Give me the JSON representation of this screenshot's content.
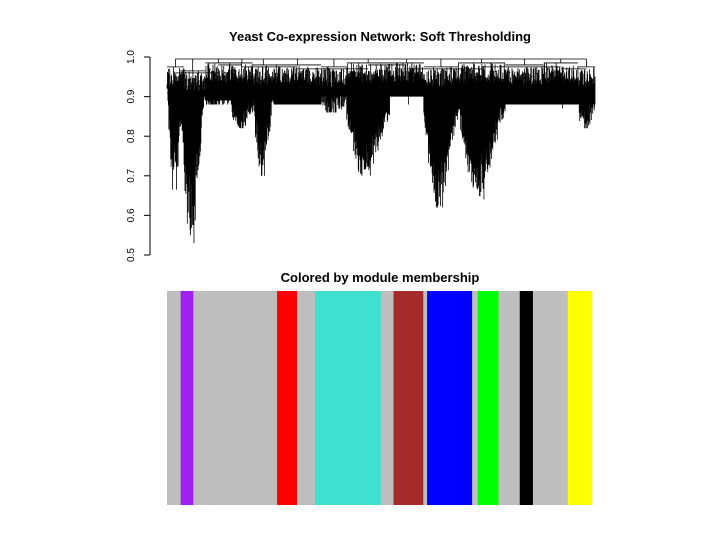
{
  "chart_data": [
    {
      "type": "dendrogram",
      "title": "Yeast Co-expression Network: Soft Thresholding",
      "xlabel": "",
      "ylabel": "",
      "ylim": [
        0.5,
        1.0
      ],
      "yticks": [
        "0.5",
        "0.6",
        "0.7",
        "0.8",
        "0.9",
        "1.0"
      ],
      "grid": false,
      "legend": "none",
      "line_color": "#000000",
      "clusters": [
        {
          "start": 0.0,
          "end": 0.04,
          "top": 0.975,
          "floor": 0.92,
          "min": 0.665
        },
        {
          "start": 0.03,
          "end": 0.09,
          "top": 0.965,
          "floor": 0.9,
          "min": 0.53
        },
        {
          "start": 0.09,
          "end": 0.15,
          "top": 0.985,
          "floor": 0.89,
          "min": 0.88
        },
        {
          "start": 0.15,
          "end": 0.2,
          "top": 0.985,
          "floor": 0.88,
          "min": 0.82
        },
        {
          "start": 0.2,
          "end": 0.25,
          "top": 0.98,
          "floor": 0.89,
          "min": 0.7
        },
        {
          "start": 0.25,
          "end": 0.36,
          "top": 0.98,
          "floor": 0.88,
          "min": 0.88
        },
        {
          "start": 0.36,
          "end": 0.42,
          "top": 0.975,
          "floor": 0.9,
          "min": 0.86
        },
        {
          "start": 0.42,
          "end": 0.52,
          "top": 0.985,
          "floor": 0.86,
          "min": 0.7
        },
        {
          "start": 0.52,
          "end": 0.6,
          "top": 0.985,
          "floor": 0.88,
          "min": 0.9
        },
        {
          "start": 0.6,
          "end": 0.68,
          "top": 0.975,
          "floor": 0.86,
          "min": 0.62
        },
        {
          "start": 0.68,
          "end": 0.79,
          "top": 0.985,
          "floor": 0.87,
          "min": 0.64
        },
        {
          "start": 0.79,
          "end": 0.88,
          "top": 0.98,
          "floor": 0.88,
          "min": 0.88
        },
        {
          "start": 0.88,
          "end": 0.96,
          "top": 0.985,
          "floor": 0.87,
          "min": 0.88
        },
        {
          "start": 0.96,
          "end": 1.0,
          "top": 0.975,
          "floor": 0.88,
          "min": 0.82
        }
      ]
    },
    {
      "type": "color-bar",
      "title": "Colored by module membership",
      "segments": [
        {
          "color": "#bebebe",
          "start": 0.0,
          "end": 0.032
        },
        {
          "color": "#a020f0",
          "start": 0.032,
          "end": 0.062
        },
        {
          "color": "#bebebe",
          "start": 0.062,
          "end": 0.259
        },
        {
          "color": "#ff0000",
          "start": 0.259,
          "end": 0.306
        },
        {
          "color": "#bebebe",
          "start": 0.306,
          "end": 0.348
        },
        {
          "color": "#40e0d0",
          "start": 0.348,
          "end": 0.503
        },
        {
          "color": "#bebebe",
          "start": 0.503,
          "end": 0.533
        },
        {
          "color": "#a52a2a",
          "start": 0.533,
          "end": 0.603
        },
        {
          "color": "#bebebe",
          "start": 0.603,
          "end": 0.612
        },
        {
          "color": "#0000ff",
          "start": 0.612,
          "end": 0.718
        },
        {
          "color": "#bebebe",
          "start": 0.718,
          "end": 0.731
        },
        {
          "color": "#00ff00",
          "start": 0.731,
          "end": 0.78
        },
        {
          "color": "#bebebe",
          "start": 0.78,
          "end": 0.83
        },
        {
          "color": "#000000",
          "start": 0.83,
          "end": 0.861
        },
        {
          "color": "#bebebe",
          "start": 0.861,
          "end": 0.943
        },
        {
          "color": "#ffff00",
          "start": 0.943,
          "end": 1.0
        }
      ]
    }
  ]
}
